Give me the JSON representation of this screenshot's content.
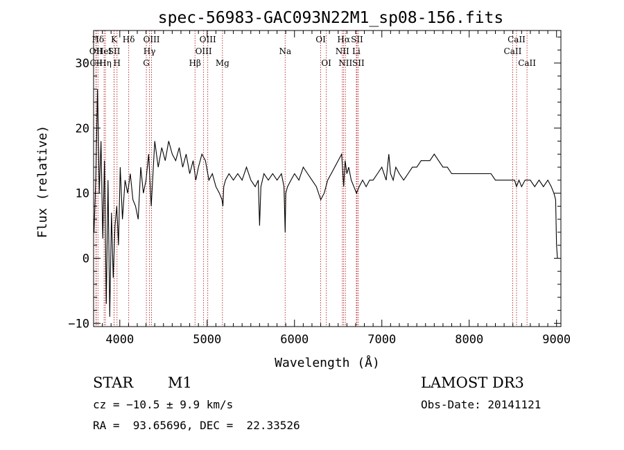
{
  "chart_data": {
    "type": "line",
    "title": "spec-56983-GAC093N22M1_sp08-156.fits",
    "xlabel": "Wavelength (Å)",
    "ylabel": "Flux (relative)",
    "xlim": [
      3700,
      9050
    ],
    "ylim": [
      -10.5,
      35
    ],
    "xticks": [
      4000,
      5000,
      6000,
      7000,
      8000,
      9000
    ],
    "yticks": [
      -10,
      0,
      10,
      20,
      30
    ],
    "series": [
      {
        "name": "flux",
        "x": [
          3705,
          3725,
          3745,
          3765,
          3785,
          3805,
          3825,
          3845,
          3865,
          3885,
          3905,
          3925,
          3945,
          3965,
          3985,
          4005,
          4030,
          4060,
          4090,
          4120,
          4150,
          4180,
          4210,
          4240,
          4270,
          4300,
          4330,
          4360,
          4400,
          4440,
          4480,
          4520,
          4560,
          4600,
          4640,
          4680,
          4720,
          4760,
          4800,
          4840,
          4870,
          4900,
          4940,
          4980,
          5020,
          5060,
          5100,
          5140,
          5170,
          5180,
          5190,
          5210,
          5250,
          5300,
          5350,
          5400,
          5450,
          5500,
          5550,
          5585,
          5600,
          5615,
          5650,
          5700,
          5750,
          5800,
          5850,
          5880,
          5893,
          5900,
          5920,
          5960,
          6000,
          6050,
          6100,
          6150,
          6200,
          6250,
          6300,
          6340,
          6380,
          6420,
          6460,
          6500,
          6540,
          6563,
          6580,
          6600,
          6620,
          6650,
          6680,
          6710,
          6740,
          6780,
          6820,
          6860,
          6900,
          6950,
          7000,
          7050,
          7080,
          7100,
          7130,
          7160,
          7200,
          7250,
          7300,
          7350,
          7400,
          7450,
          7500,
          7550,
          7600,
          7650,
          7700,
          7750,
          7800,
          7850,
          7900,
          7950,
          8000,
          8050,
          8100,
          8150,
          8200,
          8250,
          8300,
          8350,
          8400,
          8450,
          8498,
          8520,
          8542,
          8570,
          8600,
          8640,
          8662,
          8700,
          8750,
          8800,
          8850,
          8900,
          8940,
          8970,
          8990,
          9000,
          9010
        ],
        "y": [
          4,
          12,
          26,
          10,
          18,
          3,
          15,
          -7,
          12,
          -9,
          7,
          -3,
          5,
          8,
          2,
          14,
          6,
          12,
          10,
          13,
          9,
          8,
          6,
          14,
          10,
          12,
          16,
          8,
          18,
          14,
          17,
          15,
          18,
          16,
          15,
          17,
          14,
          16,
          13,
          15,
          12,
          14,
          16,
          15,
          12,
          13,
          11,
          10,
          9,
          8,
          11,
          12,
          13,
          12,
          13,
          12,
          14,
          12,
          11,
          12,
          5,
          11,
          13,
          12,
          13,
          12,
          13,
          11,
          4,
          10,
          11,
          12,
          13,
          12,
          14,
          13,
          12,
          11,
          9,
          10,
          12,
          13,
          14,
          15,
          16,
          11,
          15,
          13,
          14,
          12,
          11,
          10,
          11,
          12,
          11,
          12,
          12,
          13,
          14,
          12,
          16,
          13,
          12,
          14,
          13,
          12,
          13,
          14,
          14,
          15,
          15,
          15,
          16,
          15,
          14,
          14,
          13,
          13,
          13,
          13,
          13,
          13,
          13,
          13,
          13,
          13,
          12,
          12,
          12,
          12,
          12,
          12,
          11,
          12,
          11,
          12,
          12,
          12,
          11,
          12,
          11,
          12,
          11,
          10,
          9,
          2,
          0
        ]
      }
    ],
    "spectral_lines": [
      {
        "label": "Hδ",
        "x": 3750,
        "row": 1
      },
      {
        "label": "OII",
        "x": 3727,
        "row": 2
      },
      {
        "label": "CII",
        "x": 3730,
        "row": 3
      },
      {
        "label": "HeI",
        "x": 3820,
        "row": 2
      },
      {
        "label": "Hη",
        "x": 3835,
        "row": 3
      },
      {
        "label": "K",
        "x": 3934,
        "row": 1
      },
      {
        "label": "SII",
        "x": 3935,
        "row": 2
      },
      {
        "label": "H",
        "x": 3968,
        "row": 3
      },
      {
        "label": "Hδ",
        "x": 4102,
        "row": 1
      },
      {
        "label": "OIII",
        "x": 4363,
        "row": 1
      },
      {
        "label": "Hγ",
        "x": 4340,
        "row": 2
      },
      {
        "label": "G",
        "x": 4304,
        "row": 3
      },
      {
        "label": "OIII",
        "x": 5007,
        "row": 1
      },
      {
        "label": "OIII",
        "x": 4959,
        "row": 2
      },
      {
        "label": "Hβ",
        "x": 4861,
        "row": 3
      },
      {
        "label": "Mg",
        "x": 5175,
        "row": 3
      },
      {
        "label": "Na",
        "x": 5893,
        "row": 2
      },
      {
        "label": "OI",
        "x": 6300,
        "row": 1
      },
      {
        "label": "OI",
        "x": 6364,
        "row": 3
      },
      {
        "label": "Hα",
        "x": 6563,
        "row": 1
      },
      {
        "label": "SII",
        "x": 6716,
        "row": 1
      },
      {
        "label": "NII",
        "x": 6548,
        "row": 2
      },
      {
        "label": "Li",
        "x": 6708,
        "row": 2
      },
      {
        "label": "NII",
        "x": 6583,
        "row": 3
      },
      {
        "label": "SII",
        "x": 6731,
        "row": 3
      },
      {
        "label": "CaII",
        "x": 8542,
        "row": 1
      },
      {
        "label": "CaII",
        "x": 8498,
        "row": 2
      },
      {
        "label": "CaII",
        "x": 8662,
        "row": 3
      }
    ],
    "grid": false,
    "legend": "none"
  },
  "info": {
    "object_class": "STAR",
    "subclass": "M1",
    "cz": "cz = −10.5 ± 9.9 km/s",
    "coords": "RA =  93.65696, DEC =  22.33526",
    "survey": "LAMOST DR3",
    "obs_date": "Obs-Date: 20141121"
  },
  "colors": {
    "line_marker": "#b22222",
    "spectrum": "#000000"
  }
}
